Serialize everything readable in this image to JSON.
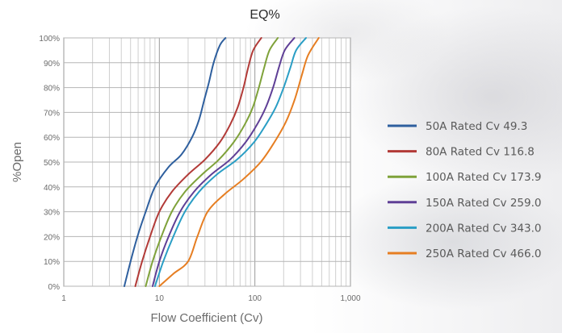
{
  "chart_data": {
    "type": "line",
    "title": "EQ%",
    "xlabel": "Flow Coefficient (Cv)",
    "ylabel": "%Open",
    "x_scale": "log",
    "xlim": [
      1,
      1000
    ],
    "ylim": [
      0,
      100
    ],
    "x_ticks": [
      "1",
      "10",
      "100",
      "1,000"
    ],
    "y_ticks": [
      "0%",
      "10%",
      "20%",
      "30%",
      "40%",
      "50%",
      "60%",
      "70%",
      "80%",
      "90%",
      "100%"
    ],
    "grid": true,
    "legend_position": "right",
    "series": [
      {
        "name": "50A Rated Cv 49.3",
        "color": "#2e5f9e",
        "points": [
          [
            4.3,
            0
          ],
          [
            5.0,
            10
          ],
          [
            5.9,
            20
          ],
          [
            7.2,
            30
          ],
          [
            9.0,
            40
          ],
          [
            12.5,
            48
          ],
          [
            17.0,
            53
          ],
          [
            22.0,
            60
          ],
          [
            26.0,
            67
          ],
          [
            29.5,
            75
          ],
          [
            33.0,
            82
          ],
          [
            37.0,
            90
          ],
          [
            43.0,
            97
          ],
          [
            49.3,
            100
          ]
        ]
      },
      {
        "name": "80A Rated Cv 116.8",
        "color": "#b23a37",
        "points": [
          [
            5.6,
            0
          ],
          [
            6.6,
            10
          ],
          [
            8.0,
            20
          ],
          [
            10.0,
            30
          ],
          [
            13.5,
            38
          ],
          [
            20.0,
            45
          ],
          [
            30.0,
            51
          ],
          [
            43.0,
            58
          ],
          [
            55.0,
            65
          ],
          [
            66.0,
            72
          ],
          [
            76.0,
            80
          ],
          [
            85.0,
            88
          ],
          [
            96.0,
            95
          ],
          [
            116.8,
            100
          ]
        ]
      },
      {
        "name": "100A Rated Cv 173.9",
        "color": "#7fa23a",
        "points": [
          [
            7.2,
            0
          ],
          [
            8.5,
            10
          ],
          [
            10.5,
            20
          ],
          [
            13.5,
            30
          ],
          [
            18.5,
            38
          ],
          [
            28.0,
            45
          ],
          [
            42.0,
            51
          ],
          [
            60.0,
            58
          ],
          [
            78.0,
            65
          ],
          [
            95.0,
            72
          ],
          [
            110.0,
            80
          ],
          [
            125.0,
            88
          ],
          [
            142.0,
            95
          ],
          [
            173.9,
            100
          ]
        ]
      },
      {
        "name": "150A Rated Cv 259.0",
        "color": "#5f3f96",
        "points": [
          [
            8.5,
            0
          ],
          [
            10.0,
            10
          ],
          [
            12.5,
            20
          ],
          [
            16.5,
            30
          ],
          [
            23.0,
            38
          ],
          [
            35.0,
            45
          ],
          [
            55.0,
            51
          ],
          [
            80.0,
            58
          ],
          [
            105.0,
            65
          ],
          [
            130.0,
            72
          ],
          [
            155.0,
            80
          ],
          [
            178.0,
            88
          ],
          [
            205.0,
            95
          ],
          [
            259.0,
            100
          ]
        ]
      },
      {
        "name": "200A Rated Cv 343.0",
        "color": "#2a9ec5",
        "points": [
          [
            9.0,
            0
          ],
          [
            11.0,
            10
          ],
          [
            14.0,
            20
          ],
          [
            18.5,
            30
          ],
          [
            26.0,
            38
          ],
          [
            40.0,
            45
          ],
          [
            65.0,
            51
          ],
          [
            98.0,
            58
          ],
          [
            130.0,
            65
          ],
          [
            165.0,
            72
          ],
          [
            200.0,
            80
          ],
          [
            235.0,
            88
          ],
          [
            270.0,
            95
          ],
          [
            343.0,
            100
          ]
        ]
      },
      {
        "name": "250A Rated Cv 466.0",
        "color": "#e67e22",
        "points": [
          [
            10.0,
            0
          ],
          [
            14.0,
            5
          ],
          [
            20.0,
            10
          ],
          [
            25.0,
            20
          ],
          [
            32.0,
            30
          ],
          [
            48.0,
            37
          ],
          [
            75.0,
            43
          ],
          [
            115.0,
            50
          ],
          [
            160.0,
            58
          ],
          [
            210.0,
            66
          ],
          [
            260.0,
            75
          ],
          [
            310.0,
            85
          ],
          [
            360.0,
            93
          ],
          [
            466.0,
            100
          ]
        ]
      }
    ]
  }
}
